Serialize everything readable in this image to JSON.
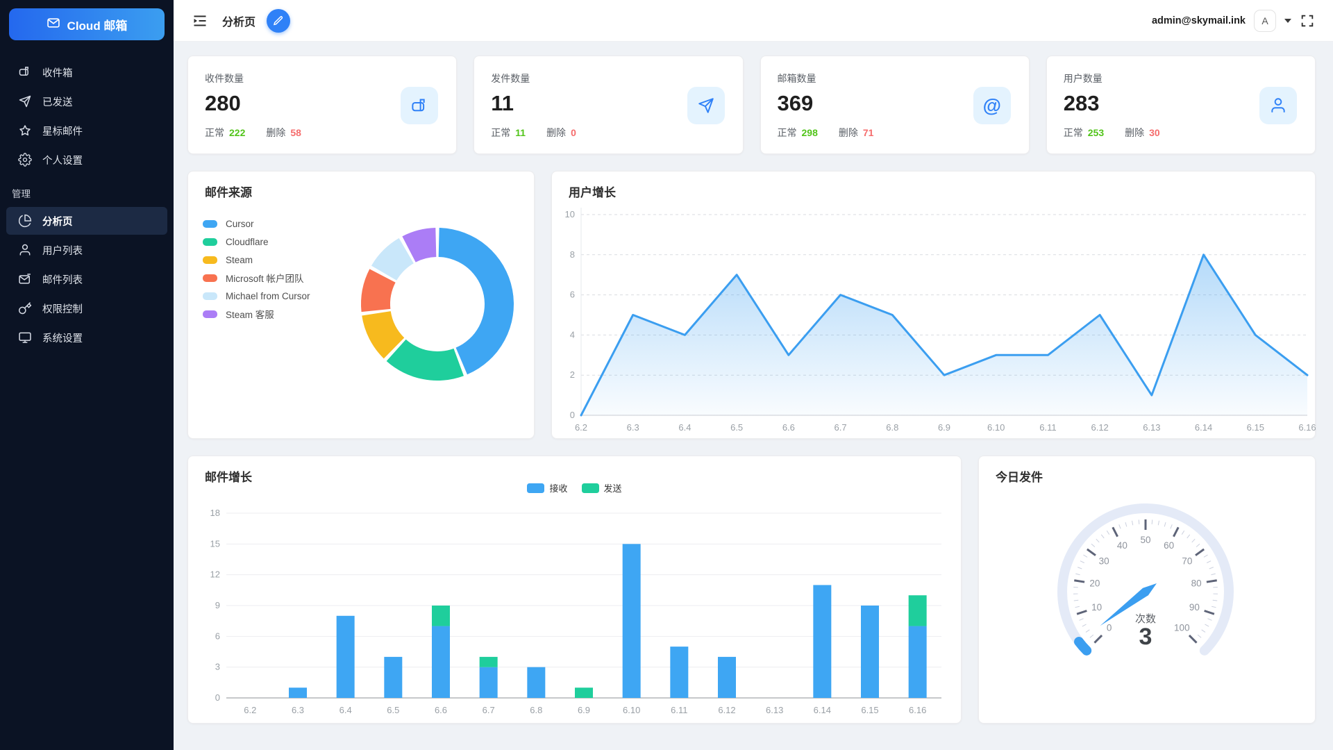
{
  "app": {
    "logo_text": "Cloud 邮箱"
  },
  "sidebar": {
    "section_label": "管理",
    "items": [
      {
        "label": "收件箱",
        "icon": "inbox-icon"
      },
      {
        "label": "已发送",
        "icon": "sent-icon"
      },
      {
        "label": "星标邮件",
        "icon": "star-icon"
      },
      {
        "label": "个人设置",
        "icon": "settings-icon"
      }
    ],
    "admin_items": [
      {
        "label": "分析页",
        "icon": "pie-chart-icon",
        "active": true
      },
      {
        "label": "用户列表",
        "icon": "user-icon"
      },
      {
        "label": "邮件列表",
        "icon": "mail-list-icon"
      },
      {
        "label": "权限控制",
        "icon": "key-icon"
      },
      {
        "label": "系统设置",
        "icon": "monitor-icon"
      }
    ]
  },
  "header": {
    "title": "分析页",
    "user_email": "admin@skymail.ink",
    "avatar_letter": "A"
  },
  "stat_cards": [
    {
      "label": "收件数量",
      "value": "280",
      "normal_label": "正常",
      "normal": "222",
      "deleted_label": "删除",
      "deleted": "58",
      "icon": "mailbox-icon"
    },
    {
      "label": "发件数量",
      "value": "11",
      "normal_label": "正常",
      "normal": "11",
      "deleted_label": "删除",
      "deleted": "0",
      "icon": "send-icon"
    },
    {
      "label": "邮箱数量",
      "value": "369",
      "normal_label": "正常",
      "normal": "298",
      "deleted_label": "删除",
      "deleted": "71",
      "icon": "at-icon",
      "icon_char": "@"
    },
    {
      "label": "用户数量",
      "value": "283",
      "normal_label": "正常",
      "normal": "253",
      "deleted_label": "删除",
      "deleted": "30",
      "icon": "user-icon"
    }
  ],
  "colors": {
    "accent_blue": "#2f81f7",
    "normal_green": "#52c41a",
    "deleted_red": "#f56c6c",
    "sidebar_bg": "#0b1324"
  },
  "chart_data": [
    {
      "type": "pie",
      "variant": "donut",
      "title": "邮件来源",
      "labels": [
        "Cursor",
        "Cloudflare",
        "Steam",
        "Microsoft 帐户团队",
        "Michael from Cursor",
        "Steam 客服"
      ],
      "values_percent": [
        44,
        18,
        11,
        10,
        9,
        8
      ],
      "colors": [
        "#3ea6f3",
        "#1fce9c",
        "#f7ba1e",
        "#f87250",
        "#c9e7fa",
        "#ab7df6"
      ],
      "legend_position": "left"
    },
    {
      "type": "area",
      "title": "用户增长",
      "x": [
        "6.2",
        "6.3",
        "6.4",
        "6.5",
        "6.6",
        "6.7",
        "6.8",
        "6.9",
        "6.10",
        "6.11",
        "6.12",
        "6.13",
        "6.14",
        "6.15",
        "6.16"
      ],
      "series": [
        {
          "name": "用户增长",
          "values": [
            0,
            5,
            4,
            7,
            3,
            6,
            5,
            2,
            3,
            3,
            5,
            1,
            8,
            4,
            2
          ]
        }
      ],
      "ylim": [
        0,
        10
      ],
      "yticks": [
        0,
        2,
        4,
        6,
        8,
        10
      ],
      "line_color": "#3b9ef0",
      "grid": "dashed"
    },
    {
      "type": "bar",
      "title": "邮件增长",
      "stacked": true,
      "categories": [
        "6.2",
        "6.3",
        "6.4",
        "6.5",
        "6.6",
        "6.7",
        "6.8",
        "6.9",
        "6.10",
        "6.11",
        "6.12",
        "6.13",
        "6.14",
        "6.15",
        "6.16"
      ],
      "series": [
        {
          "name": "接收",
          "color": "#3ea6f3",
          "values": [
            0,
            1,
            8,
            4,
            7,
            3,
            3,
            0,
            15,
            5,
            4,
            0,
            11,
            9,
            7
          ]
        },
        {
          "name": "发送",
          "color": "#1fce9c",
          "values": [
            0,
            0,
            0,
            0,
            2,
            1,
            0,
            1,
            0,
            0,
            0,
            0,
            0,
            0,
            3
          ]
        }
      ],
      "ylim": [
        0,
        18
      ],
      "yticks": [
        0,
        3,
        6,
        9,
        12,
        15,
        18
      ],
      "legend_position": "top"
    },
    {
      "type": "gauge",
      "title": "今日发件",
      "label": "次数",
      "value": 3,
      "min": 0,
      "max": 100,
      "tick_labels": [
        0,
        10,
        20,
        30,
        40,
        50,
        60,
        70,
        80,
        90,
        100
      ],
      "track_color": "#e4eaf7",
      "progress_color": "#3b9ef0",
      "needle_color": "#3b9ef0"
    }
  ]
}
